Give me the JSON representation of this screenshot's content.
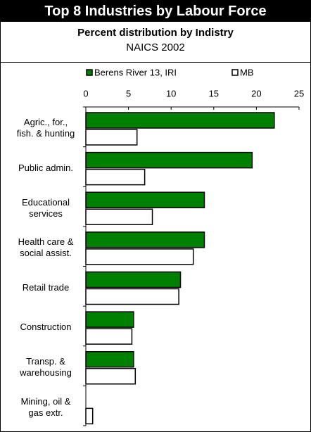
{
  "title": "Top 8 Industries by Labour Force",
  "chart_data": {
    "type": "bar",
    "orientation": "horizontal",
    "subtitle": "Percent distribution by Indistry",
    "subtitle2": "NAICS 2002",
    "categories": [
      "Agric., for.,\nfish. & hunting",
      "Public admin.",
      "Educational\nservices",
      "Health care &\nsocial assist.",
      "Retail trade",
      "Construction",
      "Transp. &\nwarehousing",
      "Mining, oil &\ngas extr."
    ],
    "series": [
      {
        "name": "Berens River 13, IRI",
        "color": "#008000",
        "values": [
          22.1,
          19.5,
          13.9,
          13.9,
          11.1,
          5.6,
          5.6,
          0
        ]
      },
      {
        "name": "MB",
        "color": "#ffffff",
        "values": [
          6.0,
          6.9,
          7.8,
          12.6,
          10.9,
          5.4,
          5.8,
          0.8
        ]
      }
    ],
    "xlim": [
      0,
      25
    ],
    "xticks": [
      0,
      5,
      10,
      15,
      20,
      25
    ]
  }
}
